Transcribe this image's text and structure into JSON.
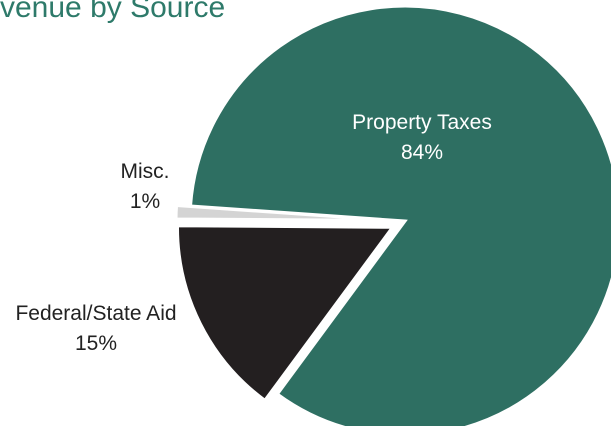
{
  "chart_data": {
    "type": "pie",
    "title": "venue by Source",
    "slices": [
      {
        "label": "Property Taxes",
        "value": 84,
        "value_label": "84%",
        "color": "#2e6f62"
      },
      {
        "label": "Federal/State Aid",
        "value": 15,
        "value_label": "15%",
        "color": "#231f20"
      },
      {
        "label": "Misc.",
        "value": 1,
        "value_label": "1%",
        "color": "#d4d4d4"
      }
    ],
    "legend": "none"
  }
}
